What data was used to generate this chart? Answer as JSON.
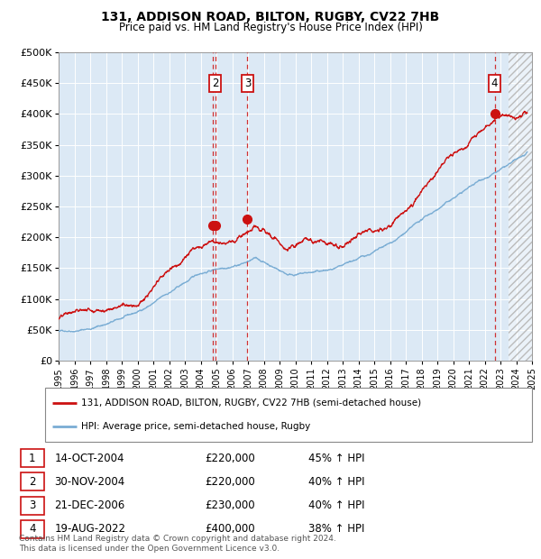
{
  "title1": "131, ADDISON ROAD, BILTON, RUGBY, CV22 7HB",
  "title2": "Price paid vs. HM Land Registry's House Price Index (HPI)",
  "legend_line1": "131, ADDISON ROAD, BILTON, RUGBY, CV22 7HB (semi-detached house)",
  "legend_line2": "HPI: Average price, semi-detached house, Rugby",
  "hpi_color": "#7aadd4",
  "price_color": "#cc1111",
  "bg_color": "#dce9f5",
  "transactions": [
    {
      "num": 1,
      "date_label": "14-OCT-2004",
      "date_x": 2004.79,
      "price": 220000,
      "pct": "45%"
    },
    {
      "num": 2,
      "date_label": "30-NOV-2004",
      "date_x": 2004.92,
      "price": 220000,
      "pct": "40%"
    },
    {
      "num": 3,
      "date_label": "21-DEC-2006",
      "date_x": 2006.97,
      "price": 230000,
      "pct": "40%"
    },
    {
      "num": 4,
      "date_label": "19-AUG-2022",
      "date_x": 2022.63,
      "price": 400000,
      "pct": "38%"
    }
  ],
  "footer": "Contains HM Land Registry data © Crown copyright and database right 2024.\nThis data is licensed under the Open Government Licence v3.0.",
  "ylim": [
    0,
    500000
  ],
  "xlim_start": 1995.0,
  "xlim_end": 2025.0,
  "hatch_start": 2023.5
}
